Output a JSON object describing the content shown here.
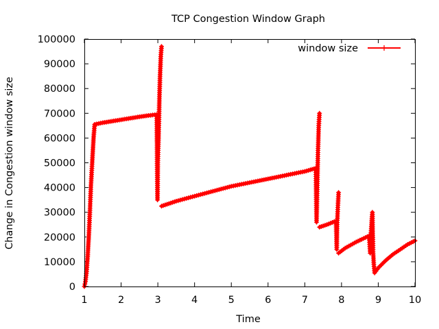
{
  "chart_data": {
    "type": "line",
    "title": "TCP Congestion Window Graph",
    "xlabel": "Time",
    "ylabel": "Change in Congestion window size",
    "xlim": [
      1,
      10
    ],
    "ylim": [
      0,
      100000
    ],
    "x_ticks": [
      "1",
      "2",
      "3",
      "4",
      "5",
      "6",
      "7",
      "8",
      "9",
      "10"
    ],
    "y_ticks": [
      "0",
      "10000",
      "20000",
      "30000",
      "40000",
      "50000",
      "60000",
      "70000",
      "80000",
      "90000",
      "100000"
    ],
    "grid": false,
    "legend_position": "top-right",
    "point_marker": "plus",
    "series": [
      {
        "name": "window size",
        "color": "#ff0000",
        "segments": [
          [
            [
              1.0,
              0
            ],
            [
              1.03,
              2000
            ],
            [
              1.06,
              6000
            ],
            [
              1.09,
              12000
            ],
            [
              1.12,
              20000
            ],
            [
              1.15,
              30000
            ],
            [
              1.18,
              41000
            ],
            [
              1.22,
              52000
            ],
            [
              1.25,
              60000
            ],
            [
              1.28,
              65500
            ],
            [
              1.5,
              66200
            ],
            [
              1.75,
              66800
            ],
            [
              2.0,
              67400
            ],
            [
              2.25,
              68000
            ],
            [
              2.5,
              68600
            ],
            [
              2.75,
              69100
            ],
            [
              2.97,
              69500
            ],
            [
              2.99,
              35000
            ],
            [
              3.0,
              50000
            ],
            [
              3.02,
              60000
            ],
            [
              3.04,
              75000
            ],
            [
              3.06,
              85000
            ],
            [
              3.08,
              93000
            ],
            [
              3.1,
              97000
            ]
          ],
          [
            [
              3.1,
              32500
            ],
            [
              3.5,
              34500
            ],
            [
              4.0,
              36500
            ],
            [
              4.5,
              38500
            ],
            [
              5.0,
              40500
            ],
            [
              5.5,
              42000
            ],
            [
              6.0,
              43500
            ],
            [
              6.5,
              45000
            ],
            [
              7.0,
              46500
            ],
            [
              7.3,
              47800
            ],
            [
              7.32,
              26000
            ],
            [
              7.34,
              40000
            ],
            [
              7.36,
              55000
            ],
            [
              7.38,
              65000
            ],
            [
              7.4,
              70000
            ]
          ],
          [
            [
              7.4,
              24000
            ],
            [
              7.6,
              25000
            ],
            [
              7.85,
              26500
            ],
            [
              7.87,
              15000
            ],
            [
              7.88,
              25000
            ],
            [
              7.9,
              32000
            ],
            [
              7.92,
              38000
            ]
          ],
          [
            [
              7.92,
              13500
            ],
            [
              8.1,
              15500
            ],
            [
              8.4,
              18000
            ],
            [
              8.75,
              20500
            ],
            [
              8.78,
              13500
            ],
            [
              8.8,
              21000
            ],
            [
              8.82,
              26000
            ],
            [
              8.84,
              30000
            ],
            [
              8.86,
              14000
            ],
            [
              8.88,
              9000
            ],
            [
              8.9,
              5500
            ],
            [
              9.0,
              7500
            ],
            [
              9.2,
              10500
            ],
            [
              9.4,
              13000
            ],
            [
              9.6,
              15000
            ],
            [
              9.8,
              17000
            ],
            [
              10.0,
              18500
            ]
          ]
        ]
      }
    ]
  }
}
